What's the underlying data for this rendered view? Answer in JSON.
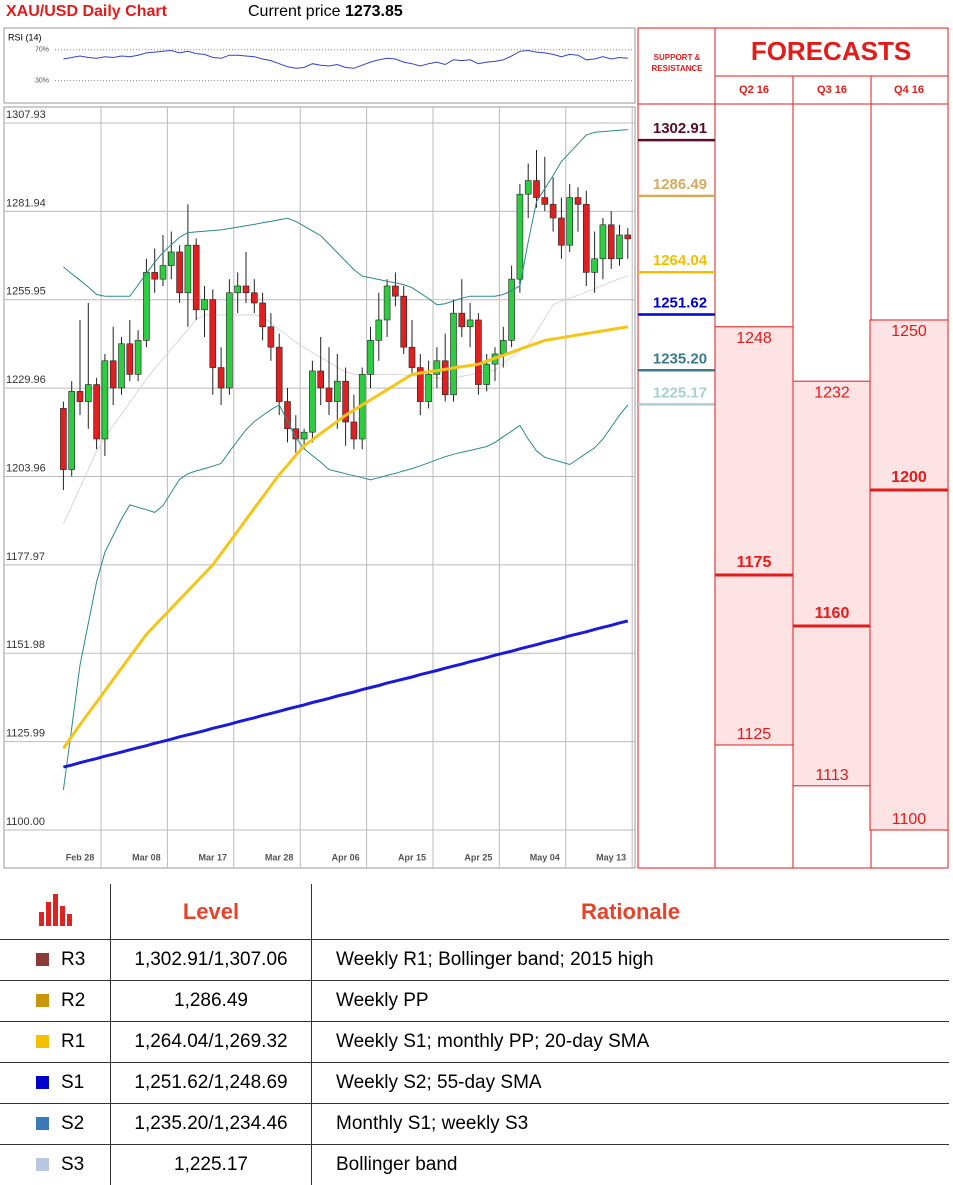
{
  "header": {
    "title": "XAU/USD Daily Chart",
    "price_label": "Current price",
    "price": 1273.85
  },
  "chart_data": [
    {
      "type": "line",
      "title": "RSI (14)",
      "color": "#3344cc",
      "ylim": [
        5,
        93
      ],
      "yticks": [
        {
          "value": 70,
          "label": "70%"
        },
        {
          "value": 30,
          "label": "30%"
        }
      ],
      "values": [
        58,
        60,
        62,
        60,
        59,
        61,
        60,
        62,
        61,
        63,
        66,
        67,
        68,
        69,
        66,
        68,
        65,
        64,
        60,
        59,
        63,
        63,
        62,
        61,
        58,
        56,
        52,
        48,
        46,
        47,
        52,
        50,
        49,
        51,
        47,
        46,
        50,
        54,
        57,
        59,
        58,
        54,
        52,
        49,
        52,
        54,
        51,
        57,
        56,
        57,
        52,
        54,
        55,
        57,
        62,
        68,
        69,
        67,
        66,
        64,
        61,
        64,
        63,
        57,
        58,
        61,
        58,
        60,
        59
      ]
    },
    {
      "type": "candlestick",
      "grid": true,
      "up_color": "#2ecc40",
      "down_color": "#e02020",
      "ylim": [
        1100,
        1307.93
      ],
      "yticks": [
        {
          "value": 1100,
          "label": "1100.00"
        },
        1125.99,
        1151.98,
        1177.97,
        1203.96,
        1229.96,
        1255.95,
        1281.94,
        1307.93
      ],
      "categories": [
        null,
        null,
        "Feb 28",
        null,
        null,
        null,
        null,
        null,
        null,
        null,
        "Mar 08",
        null,
        null,
        null,
        null,
        null,
        null,
        null,
        "Mar 17",
        null,
        null,
        null,
        null,
        null,
        null,
        null,
        "Mar 28",
        null,
        null,
        null,
        null,
        null,
        null,
        null,
        "Apr 06",
        null,
        null,
        null,
        null,
        null,
        null,
        null,
        "Apr 15",
        null,
        null,
        null,
        null,
        null,
        null,
        null,
        "Apr 25",
        null,
        null,
        null,
        null,
        null,
        null,
        null,
        "May 04",
        null,
        null,
        null,
        null,
        null,
        null,
        null,
        "May 13",
        null,
        null
      ],
      "open": [
        1224,
        1206,
        1229,
        1226,
        1231,
        1215,
        1238,
        1230,
        1243,
        1234,
        1244,
        1264,
        1262,
        1266,
        1270,
        1258,
        1272,
        1253,
        1256,
        1236,
        1230,
        1258,
        1260,
        1258,
        1255,
        1248,
        1242,
        1226,
        1218,
        1215,
        1217,
        1235,
        1230,
        1226,
        1232,
        1220,
        1215,
        1234,
        1244,
        1250,
        1260,
        1257,
        1242,
        1236,
        1226,
        1234,
        1238,
        1228,
        1252,
        1248,
        1250,
        1231,
        1237,
        1240,
        1244,
        1262,
        1287,
        1291,
        1286,
        1284,
        1280,
        1272,
        1286,
        1284,
        1264,
        1268,
        1278,
        1268,
        1275
      ],
      "high": [
        1226,
        1232,
        1250,
        1255,
        1233,
        1240,
        1248,
        1245,
        1250,
        1247,
        1268,
        1271,
        1275,
        1276,
        1272,
        1284,
        1274,
        1260,
        1259,
        1242,
        1262,
        1264,
        1270,
        1262,
        1258,
        1252,
        1246,
        1230,
        1222,
        1218,
        1238,
        1245,
        1242,
        1240,
        1236,
        1228,
        1236,
        1248,
        1258,
        1262,
        1264,
        1260,
        1250,
        1240,
        1238,
        1242,
        1246,
        1256,
        1262,
        1255,
        1252,
        1240,
        1242,
        1248,
        1266,
        1290,
        1296,
        1300,
        1298,
        1292,
        1286,
        1290,
        1289,
        1288,
        1276,
        1280,
        1282,
        1278,
        1277
      ],
      "low": [
        1200,
        1204,
        1222,
        1218,
        1212,
        1210,
        1225,
        1228,
        1232,
        1232,
        1242,
        1258,
        1260,
        1262,
        1255,
        1248,
        1250,
        1245,
        1228,
        1225,
        1228,
        1252,
        1255,
        1252,
        1244,
        1238,
        1222,
        1214,
        1211,
        1212,
        1214,
        1225,
        1222,
        1218,
        1213,
        1212,
        1212,
        1230,
        1238,
        1245,
        1254,
        1240,
        1234,
        1222,
        1224,
        1230,
        1226,
        1226,
        1245,
        1242,
        1228,
        1229,
        1232,
        1236,
        1242,
        1258,
        1280,
        1283,
        1282,
        1276,
        1268,
        1270,
        1276,
        1260,
        1258,
        1262,
        1265,
        1266,
        1268
      ],
      "close": [
        1206,
        1229,
        1226,
        1231,
        1215,
        1238,
        1230,
        1243,
        1234,
        1244,
        1264,
        1262,
        1266,
        1270,
        1258,
        1272,
        1253,
        1256,
        1236,
        1230,
        1258,
        1260,
        1258,
        1255,
        1248,
        1242,
        1226,
        1218,
        1215,
        1217,
        1235,
        1230,
        1226,
        1232,
        1220,
        1215,
        1234,
        1244,
        1250,
        1260,
        1257,
        1242,
        1236,
        1226,
        1234,
        1238,
        1228,
        1252,
        1248,
        1250,
        1231,
        1237,
        1240,
        1244,
        1262,
        1287,
        1291,
        1286,
        1284,
        1280,
        1272,
        1286,
        1284,
        1264,
        1268,
        1278,
        1268,
        1275,
        1273.85
      ],
      "series": [
        {
          "color": "#d8d8d8",
          "width": 1,
          "values": [
            1190,
            1195.3,
            1200.7,
            1206,
            1211.4,
            1215.5,
            1218.9,
            1222.3,
            1225.7,
            1229.2,
            1232.6,
            1235.7,
            1238.6,
            1241.5,
            1244.3,
            1247.2,
            1250.1,
            1251.5,
            1251.5,
            1251.5,
            1251.5,
            1251.5,
            1251.5,
            1251.5,
            1251,
            1249.1,
            1247.2,
            1245.4,
            1243.5,
            1241.9,
            1240.4,
            1239,
            1237.6,
            1236.1,
            1234.7,
            1234,
            1234,
            1234,
            1234,
            1234,
            1234,
            1233.9,
            1233.6,
            1233.4,
            1233.2,
            1233,
            1232.7,
            1232.9,
            1233.4,
            1233.9,
            1234.3,
            1234.8,
            1235.3,
            1237.2,
            1239.1,
            1241,
            1242.6,
            1246.6,
            1250.5,
            1254.5,
            1255.5,
            1256.4,
            1257.3,
            1258.3,
            1259.2,
            1260.2,
            1261.2,
            1262.1,
            1263
          ]
        },
        {
          "color": "#2a8a8a",
          "width": 1,
          "values": [
            1265.6,
            1263.6,
            1261.7,
            1259.7,
            1257.5,
            1257,
            1257,
            1257,
            1257,
            1260.3,
            1263.7,
            1267,
            1269.9,
            1272.1,
            1274.3,
            1275.7,
            1275.9,
            1276.1,
            1276.3,
            1276.5,
            1276.9,
            1277.3,
            1277.7,
            1278.1,
            1278.6,
            1279,
            1279.5,
            1279.9,
            1279,
            1277.6,
            1276.2,
            1274.8,
            1272.3,
            1269.8,
            1267.3,
            1264.8,
            1262.9,
            1262.4,
            1261.9,
            1261.4,
            1260.9,
            1260.4,
            1259.5,
            1257.9,
            1256.3,
            1254.5,
            1254.8,
            1255.6,
            1256.4,
            1257,
            1257,
            1257,
            1257,
            1257.5,
            1258.7,
            1260,
            1273,
            1284.8,
            1288.6,
            1292.5,
            1296.6,
            1299.2,
            1301.8,
            1304.4,
            1305.2,
            1305.4,
            1305.6,
            1305.8,
            1306
          ]
        },
        {
          "color": "#2a8a8a",
          "width": 1,
          "values": [
            1111.8,
            1130,
            1148.5,
            1160.8,
            1173,
            1181.7,
            1186.6,
            1191.5,
            1195.6,
            1194.9,
            1194.2,
            1193.4,
            1195.4,
            1199.3,
            1203.1,
            1204.8,
            1205.6,
            1206.3,
            1207,
            1207.8,
            1211.3,
            1214.5,
            1217.7,
            1220.1,
            1221.9,
            1223.6,
            1225,
            1220.2,
            1215.4,
            1212.1,
            1210.1,
            1208.2,
            1206,
            1205.4,
            1204.8,
            1204.2,
            1203.6,
            1203,
            1203.6,
            1204.3,
            1204.9,
            1205.6,
            1206.3,
            1207.1,
            1208,
            1208.9,
            1209.8,
            1210.5,
            1211.1,
            1211.6,
            1212.2,
            1212.8,
            1214,
            1215.7,
            1217.3,
            1219,
            1215,
            1211.5,
            1209.6,
            1208.9,
            1208.2,
            1207.5,
            1209.1,
            1210.8,
            1212.4,
            1215,
            1218.5,
            1222,
            1225
          ]
        },
        {
          "color": "#f5c518",
          "width": 3,
          "values": [
            1124,
            1127.5,
            1131,
            1134.3,
            1137.6,
            1140.9,
            1144.3,
            1147.6,
            1150.9,
            1154.2,
            1157.5,
            1160.1,
            1162.6,
            1165.2,
            1167.8,
            1170.3,
            1172.9,
            1175.4,
            1178,
            1181.3,
            1184.6,
            1187.9,
            1191.3,
            1194.6,
            1197.9,
            1201.2,
            1204.5,
            1207.3,
            1210.2,
            1213,
            1214.8,
            1216.6,
            1218.4,
            1220.2,
            1222,
            1223.5,
            1225,
            1226.5,
            1228,
            1229.5,
            1231,
            1232.5,
            1234,
            1234.4,
            1234.8,
            1235.1,
            1235.5,
            1235.9,
            1236.3,
            1236.6,
            1237,
            1237.9,
            1238.8,
            1239.6,
            1240.5,
            1241.4,
            1242.3,
            1243.1,
            1244,
            1244.4,
            1244.8,
            1245.2,
            1245.6,
            1246,
            1246.4,
            1246.8,
            1247.2,
            1247.6,
            1248
          ]
        },
        {
          "color": "#1a1adb",
          "width": 3,
          "values": [
            1118.5,
            1119.1,
            1119.8,
            1120.4,
            1121,
            1121.7,
            1122.3,
            1122.9,
            1123.6,
            1124.2,
            1124.8,
            1125.5,
            1126.1,
            1126.7,
            1127.4,
            1128,
            1128.6,
            1129.2,
            1129.9,
            1130.5,
            1131.1,
            1131.8,
            1132.4,
            1133,
            1133.7,
            1134.3,
            1134.9,
            1135.6,
            1136.2,
            1136.8,
            1137.5,
            1138.1,
            1138.7,
            1139.4,
            1140,
            1140.6,
            1141.3,
            1141.9,
            1142.5,
            1143.2,
            1143.8,
            1144.4,
            1145,
            1145.7,
            1146.3,
            1146.9,
            1147.6,
            1148.2,
            1148.8,
            1149.5,
            1150.1,
            1150.7,
            1151.4,
            1152,
            1152.6,
            1153.3,
            1153.9,
            1154.5,
            1155.2,
            1155.8,
            1156.4,
            1157.1,
            1157.7,
            1158.3,
            1159,
            1159.6,
            1160.2,
            1160.9,
            1161.5
          ]
        }
      ]
    },
    {
      "type": "forecast",
      "title": "FORECASTS",
      "levels_title": "SUPPORT & RESISTANCE",
      "color": "#e31b1b",
      "fill": "#fde3e3",
      "categories": [
        "Q2 16",
        "Q3 16",
        "Q4 16"
      ],
      "high": [
        1248,
        1232,
        1250
      ],
      "target": [
        1175,
        1160,
        1200
      ],
      "low": [
        1125,
        1113,
        1100
      ],
      "levels": {
        "values": [
          1302.91,
          1286.49,
          1264.04,
          1251.62,
          1235.2,
          1225.17
        ],
        "value_labels": [
          "1302.91",
          "1286.49",
          "1264.04",
          "1251.62",
          "1235.20",
          "1225.17"
        ],
        "colors": [
          "#5a0a2a",
          "#d4ac60",
          "#f2c000",
          "#0000cc",
          "#3a7a8a",
          "#a8d0d0"
        ]
      }
    }
  ],
  "table": {
    "columns": [
      "Level",
      "Rationale"
    ],
    "rows": [
      {
        "name": "R3",
        "color": "#8b3a3a",
        "level": "1,302.91/1,307.06",
        "rationale": "Weekly R1; Bollinger band; 2015 high"
      },
      {
        "name": "R2",
        "color": "#c8960a",
        "level": "1,286.49",
        "rationale": "Weekly PP"
      },
      {
        "name": "R1",
        "color": "#f5c000",
        "level": "1,264.04/1,269.32",
        "rationale": "Weekly S1; monthly PP; 20-day SMA"
      },
      {
        "name": "S1",
        "color": "#0000cc",
        "level": "1,251.62/1,248.69",
        "rationale": "Weekly S2; 55-day SMA"
      },
      {
        "name": "S2",
        "color": "#3a7ab8",
        "level": "1,235.20/1,234.46",
        "rationale": "Monthly S1; weekly S3"
      },
      {
        "name": "S3",
        "color": "#b8c8e0",
        "level": "1,225.17",
        "rationale": "Bollinger band"
      }
    ]
  }
}
